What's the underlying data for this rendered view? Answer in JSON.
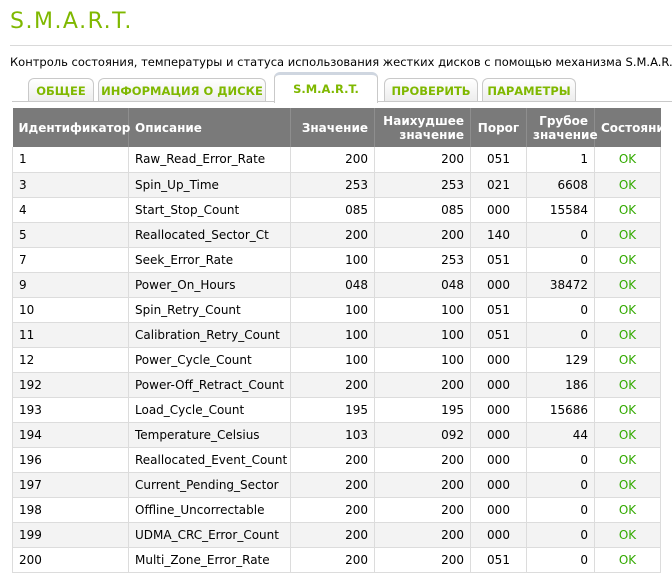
{
  "page": {
    "title": "S.M.A.R.T.",
    "subtitle": "Контроль состояния, температуры и статуса использования жестких дисков с помощью механизма S.M.A.R.T."
  },
  "tabs": [
    {
      "label": "ОБЩЕЕ",
      "active": false
    },
    {
      "label": "ИНФОРМАЦИЯ О ДИСКЕ",
      "active": false
    },
    {
      "label": "S.M.A.R.T.",
      "active": true
    },
    {
      "label": "ПРОВЕРИТЬ",
      "active": false
    },
    {
      "label": "ПАРАМЕТРЫ",
      "active": false
    }
  ],
  "table": {
    "headers": {
      "id": "Идентификатор",
      "description": "Описание",
      "value": "Значение",
      "worst_line1": "Наихудшее",
      "worst_line2": "значение",
      "threshold": "Порог",
      "raw_line1": "Грубое",
      "raw_line2": "значение",
      "status": "Состояние"
    },
    "rows": [
      {
        "id": "1",
        "description": "Raw_Read_Error_Rate",
        "value": "200",
        "worst": "200",
        "threshold": "051",
        "raw": "1",
        "status": "OK"
      },
      {
        "id": "3",
        "description": "Spin_Up_Time",
        "value": "253",
        "worst": "253",
        "threshold": "021",
        "raw": "6608",
        "status": "OK"
      },
      {
        "id": "4",
        "description": "Start_Stop_Count",
        "value": "085",
        "worst": "085",
        "threshold": "000",
        "raw": "15584",
        "status": "OK"
      },
      {
        "id": "5",
        "description": "Reallocated_Sector_Ct",
        "value": "200",
        "worst": "200",
        "threshold": "140",
        "raw": "0",
        "status": "OK"
      },
      {
        "id": "7",
        "description": "Seek_Error_Rate",
        "value": "100",
        "worst": "253",
        "threshold": "051",
        "raw": "0",
        "status": "OK"
      },
      {
        "id": "9",
        "description": "Power_On_Hours",
        "value": "048",
        "worst": "048",
        "threshold": "000",
        "raw": "38472",
        "status": "OK"
      },
      {
        "id": "10",
        "description": "Spin_Retry_Count",
        "value": "100",
        "worst": "100",
        "threshold": "051",
        "raw": "0",
        "status": "OK"
      },
      {
        "id": "11",
        "description": "Calibration_Retry_Count",
        "value": "100",
        "worst": "100",
        "threshold": "051",
        "raw": "0",
        "status": "OK"
      },
      {
        "id": "12",
        "description": "Power_Cycle_Count",
        "value": "100",
        "worst": "100",
        "threshold": "000",
        "raw": "129",
        "status": "OK"
      },
      {
        "id": "192",
        "description": "Power-Off_Retract_Count",
        "value": "200",
        "worst": "200",
        "threshold": "000",
        "raw": "186",
        "status": "OK"
      },
      {
        "id": "193",
        "description": "Load_Cycle_Count",
        "value": "195",
        "worst": "195",
        "threshold": "000",
        "raw": "15686",
        "status": "OK"
      },
      {
        "id": "194",
        "description": "Temperature_Celsius",
        "value": "103",
        "worst": "092",
        "threshold": "000",
        "raw": "44",
        "status": "OK"
      },
      {
        "id": "196",
        "description": "Reallocated_Event_Count",
        "value": "200",
        "worst": "200",
        "threshold": "000",
        "raw": "0",
        "status": "OK"
      },
      {
        "id": "197",
        "description": "Current_Pending_Sector",
        "value": "200",
        "worst": "200",
        "threshold": "000",
        "raw": "0",
        "status": "OK"
      },
      {
        "id": "198",
        "description": "Offline_Uncorrectable",
        "value": "200",
        "worst": "200",
        "threshold": "000",
        "raw": "0",
        "status": "OK"
      },
      {
        "id": "199",
        "description": "UDMA_CRC_Error_Count",
        "value": "200",
        "worst": "200",
        "threshold": "000",
        "raw": "0",
        "status": "OK"
      },
      {
        "id": "200",
        "description": "Multi_Zone_Error_Rate",
        "value": "200",
        "worst": "200",
        "threshold": "051",
        "raw": "0",
        "status": "OK"
      }
    ]
  },
  "colors": {
    "accent_green": "#7fb800",
    "ok_green": "#33aa00",
    "header_bg": "#7a7a7a"
  }
}
